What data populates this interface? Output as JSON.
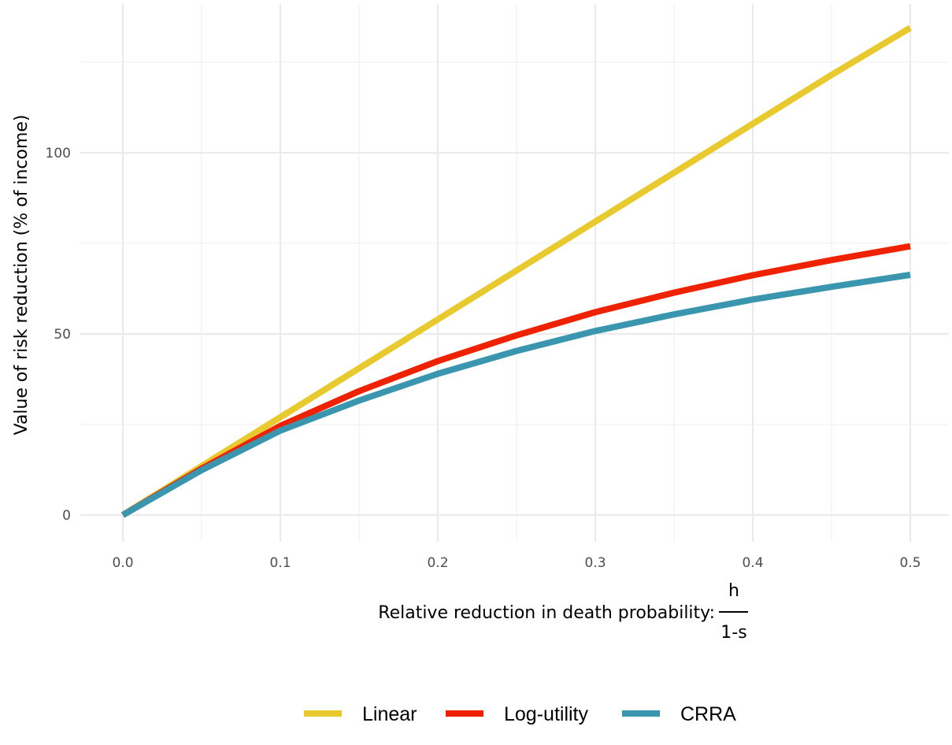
{
  "chart_data": {
    "type": "line",
    "xlabel": "Relative reduction in death probability:",
    "xlabel_fraction": {
      "numerator": "h",
      "denominator": "1-s"
    },
    "ylabel": "Value of risk reduction (% of income)",
    "xlim": [
      -0.027,
      0.51
    ],
    "ylim": [
      -5,
      141
    ],
    "x_ticks": [
      0.0,
      0.1,
      0.2,
      0.3,
      0.4,
      0.5
    ],
    "x_tick_labels": [
      "0.0",
      "0.1",
      "0.2",
      "0.3",
      "0.4",
      "0.5"
    ],
    "y_ticks": [
      0,
      50,
      100
    ],
    "y_tick_labels": [
      "0",
      "50",
      "100"
    ],
    "grid": true,
    "legend_position": "bottom",
    "x": [
      0.0,
      0.05,
      0.1,
      0.15,
      0.2,
      0.25,
      0.3,
      0.35,
      0.4,
      0.45,
      0.5
    ],
    "series": [
      {
        "name": "Linear",
        "color": "#E8C92E",
        "values": [
          0,
          13.5,
          27,
          40.5,
          54,
          67.5,
          81,
          94.5,
          108,
          121.5,
          134.5
        ]
      },
      {
        "name": "Log-utility",
        "color": "#EE2200",
        "values": [
          0,
          12.8,
          24.6,
          34.2,
          42.5,
          49.6,
          56.0,
          61.4,
          66.2,
          70.4,
          74.2
        ]
      },
      {
        "name": "CRRA",
        "color": "#3A96AE",
        "values": [
          0,
          12.4,
          23.3,
          31.6,
          39.0,
          45.3,
          50.8,
          55.4,
          59.5,
          63.0,
          66.3
        ]
      }
    ]
  }
}
